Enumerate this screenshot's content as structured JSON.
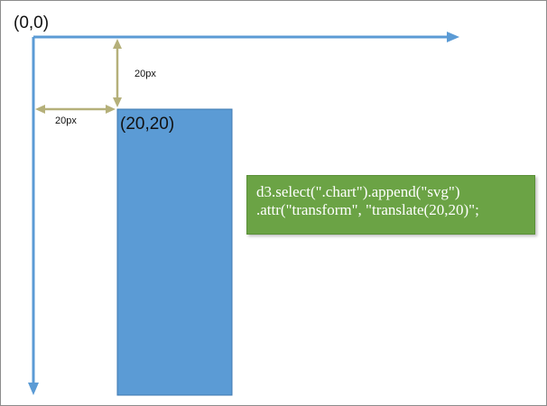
{
  "labels": {
    "origin": "(0,0)",
    "translated_point": "(20,20)",
    "vertical_offset": "20px",
    "horizontal_offset": "20px"
  },
  "code": {
    "line1": "d3.select(\".chart\").append(\"svg\")",
    "line2": ".attr(\"transform\", \"translate(20,20)\";"
  },
  "colors": {
    "axis": "#5b9bd5",
    "rect_fill": "#5b9bd5",
    "rect_border": "#3f78b0",
    "dimension_arrow": "#b5b07a",
    "code_background": "#6ba345",
    "frame_border": "#8c8c8c"
  }
}
